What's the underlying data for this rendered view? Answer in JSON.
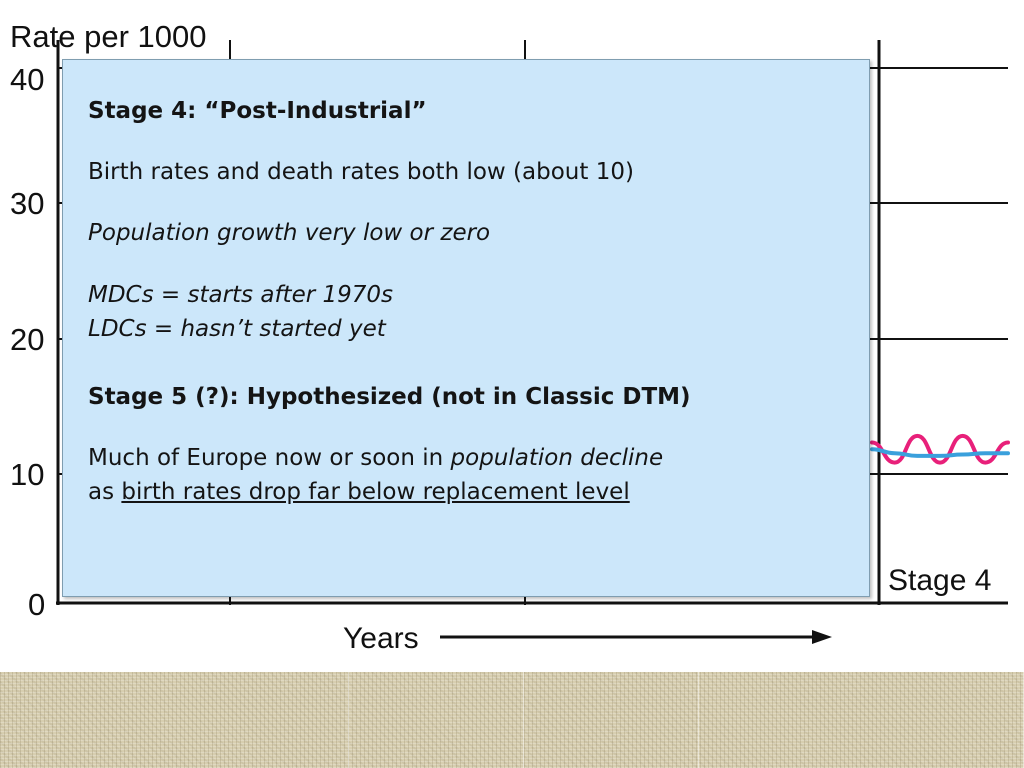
{
  "chart_data": {
    "type": "line",
    "ylabel": "Rate per 1000",
    "xlabel": "Years",
    "y_ticks": [
      "40",
      "30",
      "20",
      "10",
      "0"
    ],
    "ylim": [
      0,
      40
    ],
    "stage_labels": [
      "Stage 4"
    ],
    "grid": true,
    "series": [
      {
        "color": "#e8207a",
        "values": [
          12,
          10.5,
          12.5,
          10.5,
          12.5,
          10.5,
          12
        ]
      },
      {
        "color": "#3aa0dc",
        "values": [
          11.5,
          11.2,
          11.0,
          11.0,
          11.1,
          11.2,
          11.2
        ]
      }
    ]
  },
  "panel": {
    "stage4_heading": "Stage 4:  “Post-Industrial”",
    "stage4_rates": "Birth rates and death rates both low (about 10)",
    "stage4_growth": "Population growth very low or zero",
    "mdcs": "MDCs = starts after 1970s",
    "ldcs": "LDCs = hasn’t started yet",
    "stage5_heading": "Stage 5 (?): Hypothesized (not in Classic DTM)",
    "europe_part1": "Much of Europe now or soon in ",
    "europe_part2": "population decline",
    "europe_part3": "as ",
    "europe_part4": "birth rates drop far below replacement level"
  },
  "colors": {
    "panel_background": "#cce7fa",
    "birth_rate_line": "#e8207a",
    "death_rate_line": "#3aa0dc"
  }
}
